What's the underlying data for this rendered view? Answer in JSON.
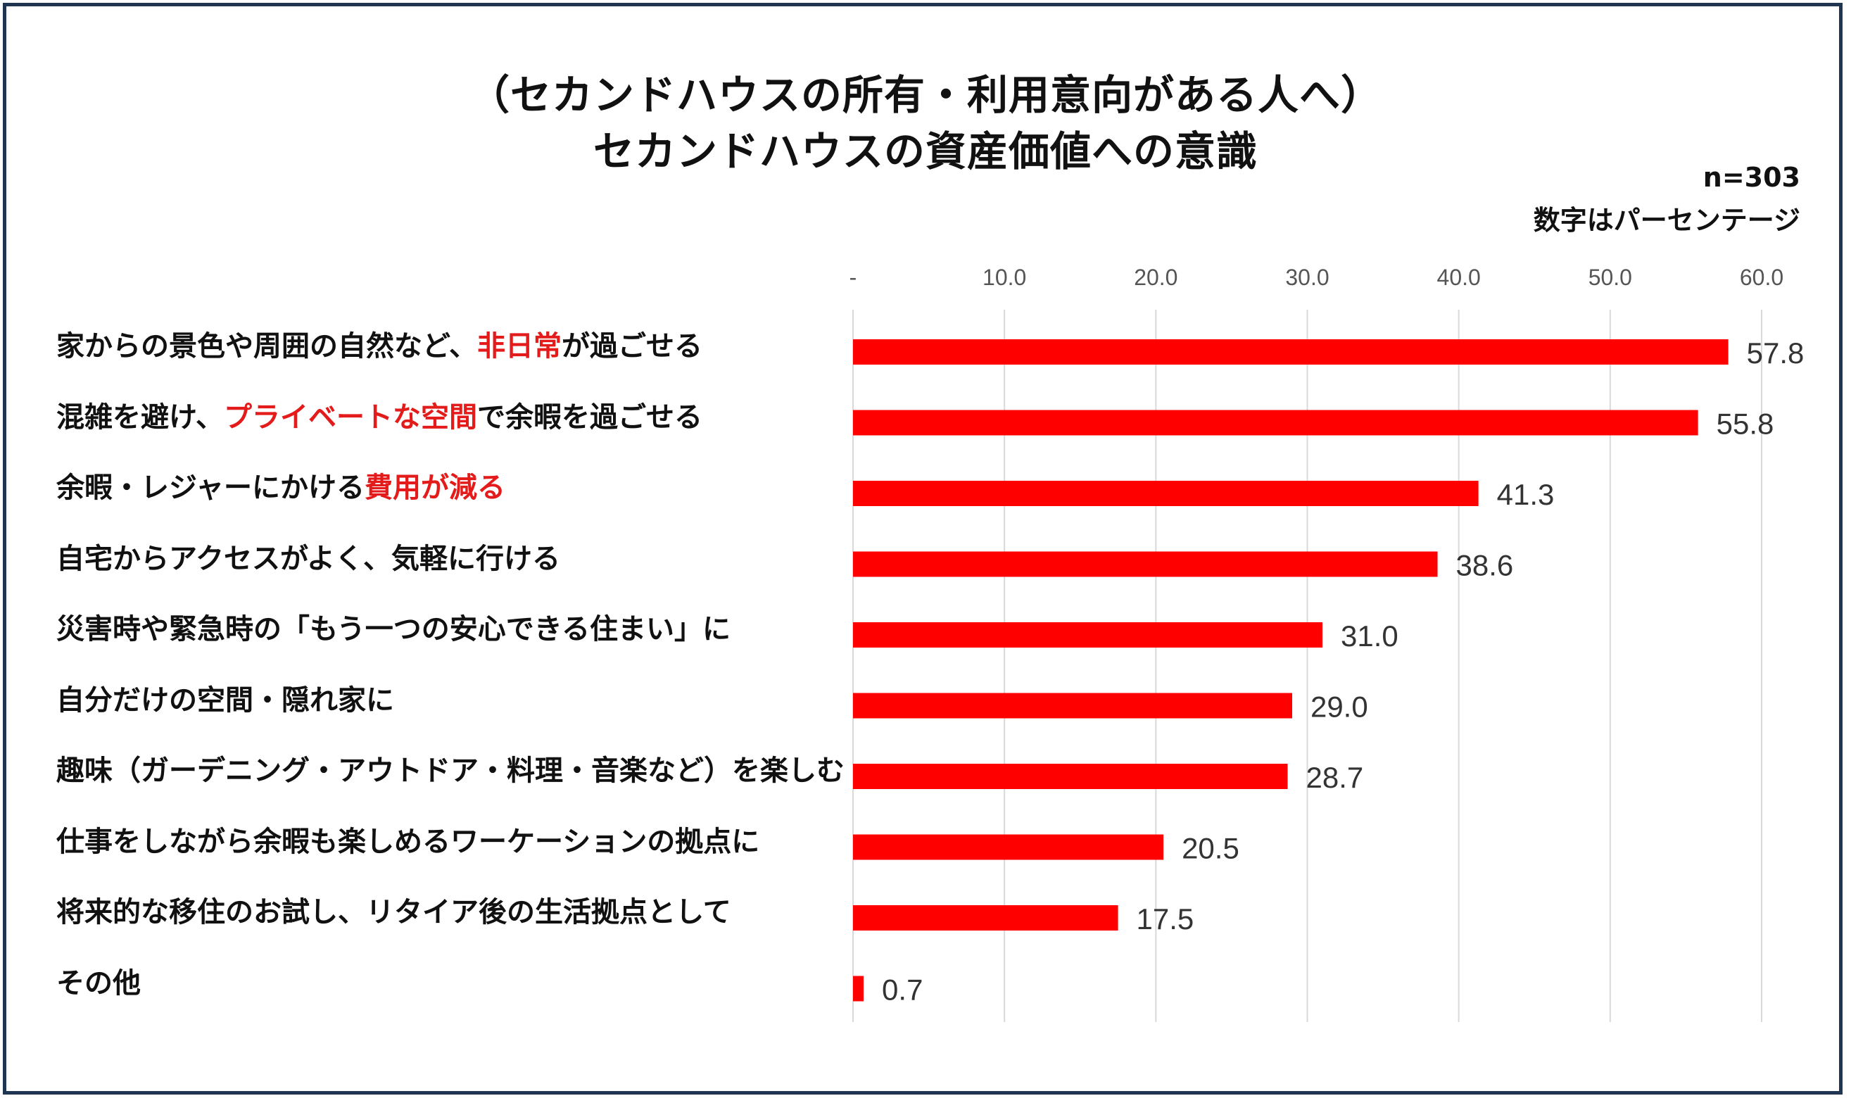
{
  "chart_data": {
    "type": "bar",
    "orientation": "horizontal",
    "title_line1": "（セカンドハウスの所有・利用意向がある人へ）",
    "title_line2": "セカンドハウスの資産価値への意識",
    "sample_note": "n=303",
    "unit_note": "数字はパーセンテージ",
    "xlim": [
      0,
      60
    ],
    "ticks": [
      "-",
      "10.0",
      "20.0",
      "30.0",
      "40.0",
      "50.0",
      "60.0"
    ],
    "tick_values": [
      0,
      10,
      20,
      30,
      40,
      50,
      60
    ],
    "bar_color": "#ff0000",
    "highlight_color": "#e41b1b",
    "categories": [
      {
        "pre": "家からの景色や周囲の自然など、",
        "hl": "非日常",
        "post": "が過ごせる"
      },
      {
        "pre": "混雑を避け、",
        "hl": "プライベートな空間",
        "post": "で余暇を過ごせる"
      },
      {
        "pre": "余暇・レジャーにかける",
        "hl": "費用が減る",
        "post": ""
      },
      {
        "pre": "自宅からアクセスがよく、気軽に行ける",
        "hl": "",
        "post": ""
      },
      {
        "pre": "災害時や緊急時の「もう一つの安心できる住まい」に",
        "hl": "",
        "post": ""
      },
      {
        "pre": "自分だけの空間・隠れ家に",
        "hl": "",
        "post": ""
      },
      {
        "pre": "趣味（ガーデニング・アウトドア・料理・音楽など）を楽しむ",
        "hl": "",
        "post": ""
      },
      {
        "pre": "仕事をしながら余暇も楽しめるワーケーションの拠点に",
        "hl": "",
        "post": ""
      },
      {
        "pre": "将来的な移住のお試し、リタイア後の生活拠点として",
        "hl": "",
        "post": ""
      },
      {
        "pre": "その他",
        "hl": "",
        "post": ""
      }
    ],
    "values": [
      57.8,
      55.8,
      41.3,
      38.6,
      31.0,
      29.0,
      28.7,
      20.5,
      17.5,
      0.7
    ],
    "value_labels": [
      "57.8",
      "55.8",
      "41.3",
      "38.6",
      "31.0",
      "29.0",
      "28.7",
      "20.5",
      "17.5",
      "0.7"
    ]
  }
}
